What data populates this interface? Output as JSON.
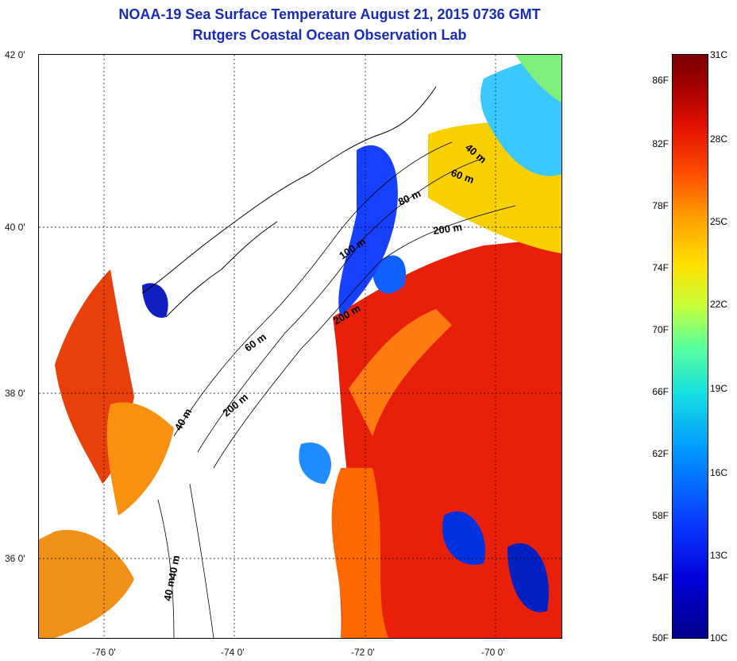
{
  "title": {
    "line1": "NOAA-19 Sea Surface Temperature August 21, 2015 0736 GMT",
    "line2": "Rutgers Coastal Ocean Observation Lab"
  },
  "axes": {
    "lat_labels": [
      "42 0'",
      "40 0'",
      "38 0'",
      "36 0'"
    ],
    "lon_labels": [
      "-76 0'",
      "-74 0'",
      "-72 0'",
      "-70 0'"
    ]
  },
  "depth_labels": [
    "40 m",
    "60 m",
    "80 m",
    "200 m",
    "100 m",
    "200 m",
    "60 m",
    "200 m",
    "40 m",
    "40 m",
    "40 m"
  ],
  "colorbar": {
    "fahrenheit": [
      "86F",
      "82F",
      "78F",
      "74F",
      "70F",
      "66F",
      "62F",
      "58F",
      "54F",
      "50F"
    ],
    "celsius": [
      "31C",
      "28C",
      "25C",
      "22C",
      "19C",
      "16C",
      "13C",
      "10C"
    ],
    "colors": [
      "#00008a",
      "#0000d8",
      "#0096ff",
      "#16e0e0",
      "#c8ff3a",
      "#ffe000",
      "#ff4a00",
      "#a00000"
    ]
  }
}
